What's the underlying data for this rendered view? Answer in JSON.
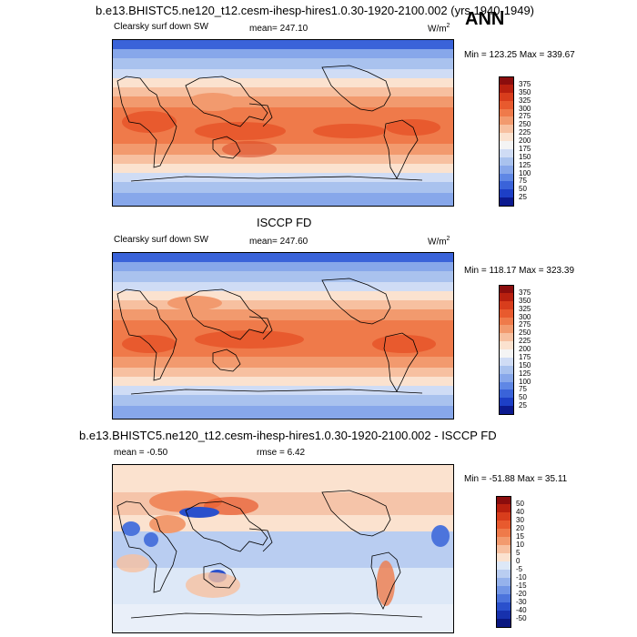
{
  "panel1": {
    "title": "b.e13.BHISTC5.ne120_t12.cesm-ihesp-hires1.0.30-1920-2100.002 (yrs 1940-1949)",
    "season": "ANN",
    "variable": "Clearsky surf down SW",
    "mean": "mean= 247.10",
    "units_base": "W/m",
    "units_exp": "2",
    "minmax": "Min = 123.25 Max = 339.67"
  },
  "panel2": {
    "title": "ISCCP FD",
    "variable": "Clearsky surf down SW",
    "mean": "mean= 247.60",
    "units_base": "W/m",
    "units_exp": "2",
    "minmax": "Min = 118.17 Max = 323.39"
  },
  "panel3": {
    "title": "b.e13.BHISTC5.ne120_t12.cesm-ihesp-hires1.0.30-1920-2100.002 - ISCCP FD",
    "mean": "mean =  -0.50",
    "rmse": "rmse =   6.42",
    "minmax": "Min = -51.88 Max =  35.11"
  },
  "colorbar_abs": {
    "labels": [
      "375",
      "350",
      "325",
      "300",
      "275",
      "250",
      "225",
      "200",
      "175",
      "150",
      "125",
      "100",
      "75",
      "50",
      "25"
    ],
    "colors": [
      "#8b0d0d",
      "#b8200f",
      "#d83d1c",
      "#e85a2e",
      "#ef7a4a",
      "#f29a6e",
      "#f7c0a0",
      "#fbe2cf",
      "#f4f4f4",
      "#cfdcf5",
      "#a9c2ee",
      "#87a7ea",
      "#5f87e5",
      "#3a63d9",
      "#1d3fc6",
      "#0c1a8f"
    ]
  },
  "colorbar_diff": {
    "labels": [
      "50",
      "40",
      "30",
      "20",
      "15",
      "10",
      "5",
      "0",
      "-5",
      "-10",
      "-15",
      "-20",
      "-30",
      "-40",
      "-50"
    ],
    "colors": [
      "#8b0d0d",
      "#b8200f",
      "#d83d1c",
      "#e85a2e",
      "#ef7a4a",
      "#f29a6e",
      "#f7c0a0",
      "#fbe2cf",
      "#dde8f7",
      "#b9cdf1",
      "#95b2ec",
      "#7296e6",
      "#4c74dc",
      "#2a50cc",
      "#1731ad",
      "#0a1780"
    ]
  }
}
